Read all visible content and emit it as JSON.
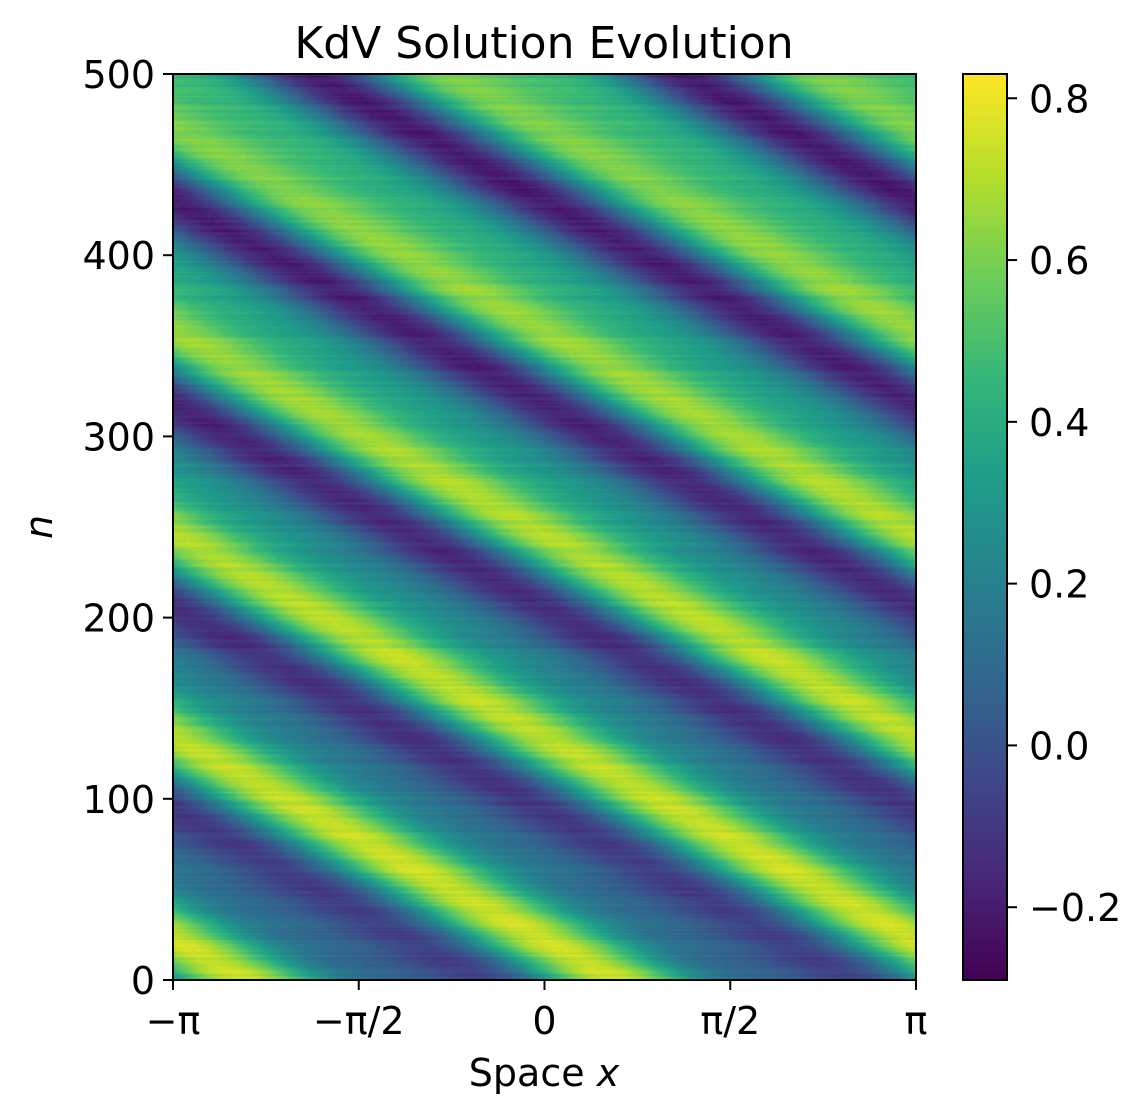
{
  "chart_data": {
    "type": "heatmap",
    "title": "KdV Solution Evolution",
    "xlabel_prefix": "Space ",
    "xlabel_var": "x",
    "ylabel": "n",
    "x_range": [
      -3.14159,
      3.14159
    ],
    "y_range": [
      0,
      500
    ],
    "x_ticks": [
      {
        "value": -3.14159,
        "label": "−π"
      },
      {
        "value": -1.5708,
        "label": "−π/2"
      },
      {
        "value": 0,
        "label": "0"
      },
      {
        "value": 1.5708,
        "label": "π/2"
      },
      {
        "value": 3.14159,
        "label": "π"
      }
    ],
    "y_ticks": [
      {
        "value": 0,
        "label": "0"
      },
      {
        "value": 100,
        "label": "100"
      },
      {
        "value": 200,
        "label": "200"
      },
      {
        "value": 300,
        "label": "300"
      },
      {
        "value": 400,
        "label": "400"
      },
      {
        "value": 500,
        "label": "500"
      }
    ],
    "colormap": "viridis",
    "color_range": [
      -0.29,
      0.83
    ],
    "colorbar_ticks": [
      {
        "value": 0.8,
        "label": "0.8"
      },
      {
        "value": 0.6,
        "label": "0.6"
      },
      {
        "value": 0.4,
        "label": "0.4"
      },
      {
        "value": 0.2,
        "label": "0.2"
      },
      {
        "value": 0.0,
        "label": "0.0"
      },
      {
        "value": -0.2,
        "label": "−0.2"
      }
    ],
    "field": {
      "mean": 0.27,
      "amplitude": 0.37,
      "wavenumber": 2,
      "drift_per_step": 0.0125,
      "phase": -1.4,
      "secondary_amplitude": 0.12,
      "noise": 0.04
    }
  },
  "colors": {
    "viridis": [
      "#440154",
      "#482878",
      "#3e4989",
      "#31688e",
      "#26828e",
      "#1f9e89",
      "#35b779",
      "#6ece58",
      "#b5de2b",
      "#fde725"
    ],
    "axis": "#000000",
    "background": "#ffffff"
  }
}
